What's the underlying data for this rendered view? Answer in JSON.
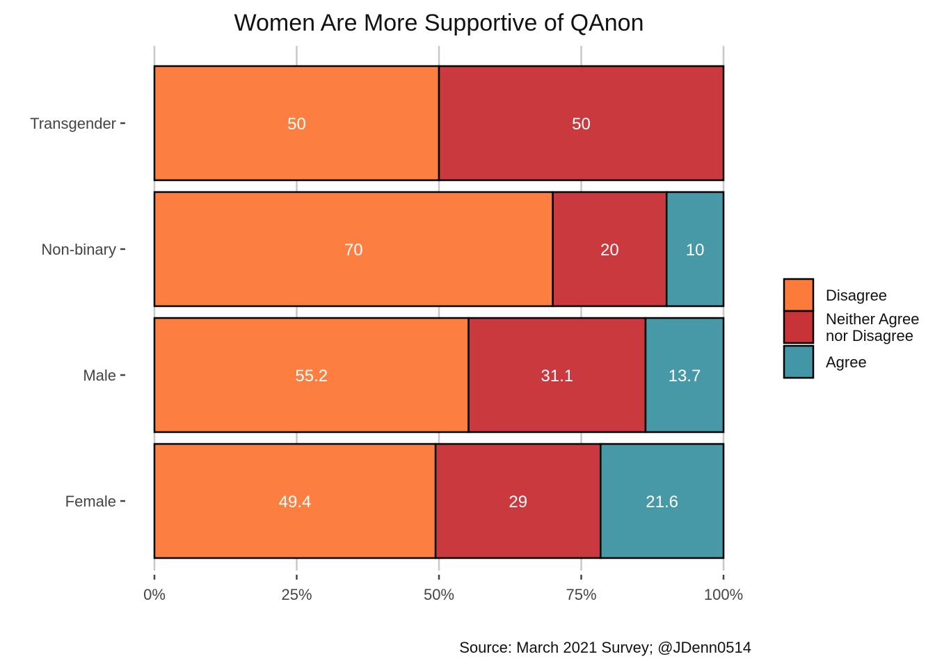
{
  "chart_data": {
    "type": "bar",
    "orientation": "horizontal",
    "stacked": true,
    "title": "Women Are More Supportive of QAnon",
    "caption": "Source: March 2021 Survey; @JDenn0514",
    "xlabel": "",
    "ylabel": "",
    "xlim": [
      0,
      100
    ],
    "x_ticks": [
      "0%",
      "25%",
      "50%",
      "75%",
      "100%"
    ],
    "x_tick_values": [
      0,
      25,
      50,
      75,
      100
    ],
    "grid": true,
    "legend_position": "right",
    "categories": [
      "Transgender",
      "Non-binary",
      "Male",
      "Female"
    ],
    "series": [
      {
        "name": "Disagree",
        "color": "#FC7B3B",
        "values": [
          50,
          70,
          55.2,
          49.4
        ],
        "labels": [
          "50",
          "70",
          "55.2",
          "49.4"
        ]
      },
      {
        "name": "Neither Agree nor Disagree",
        "legend_lines": [
          "Neither Agree",
          "nor Disagree"
        ],
        "color": "#C73337",
        "values": [
          50,
          20,
          31.1,
          29
        ],
        "labels": [
          "50",
          "20",
          "31.1",
          "29"
        ]
      },
      {
        "name": "Agree",
        "color": "#4296A5",
        "values": [
          0,
          10,
          13.7,
          21.6
        ],
        "labels": [
          "",
          "10",
          "13.7",
          "21.6"
        ]
      }
    ]
  }
}
